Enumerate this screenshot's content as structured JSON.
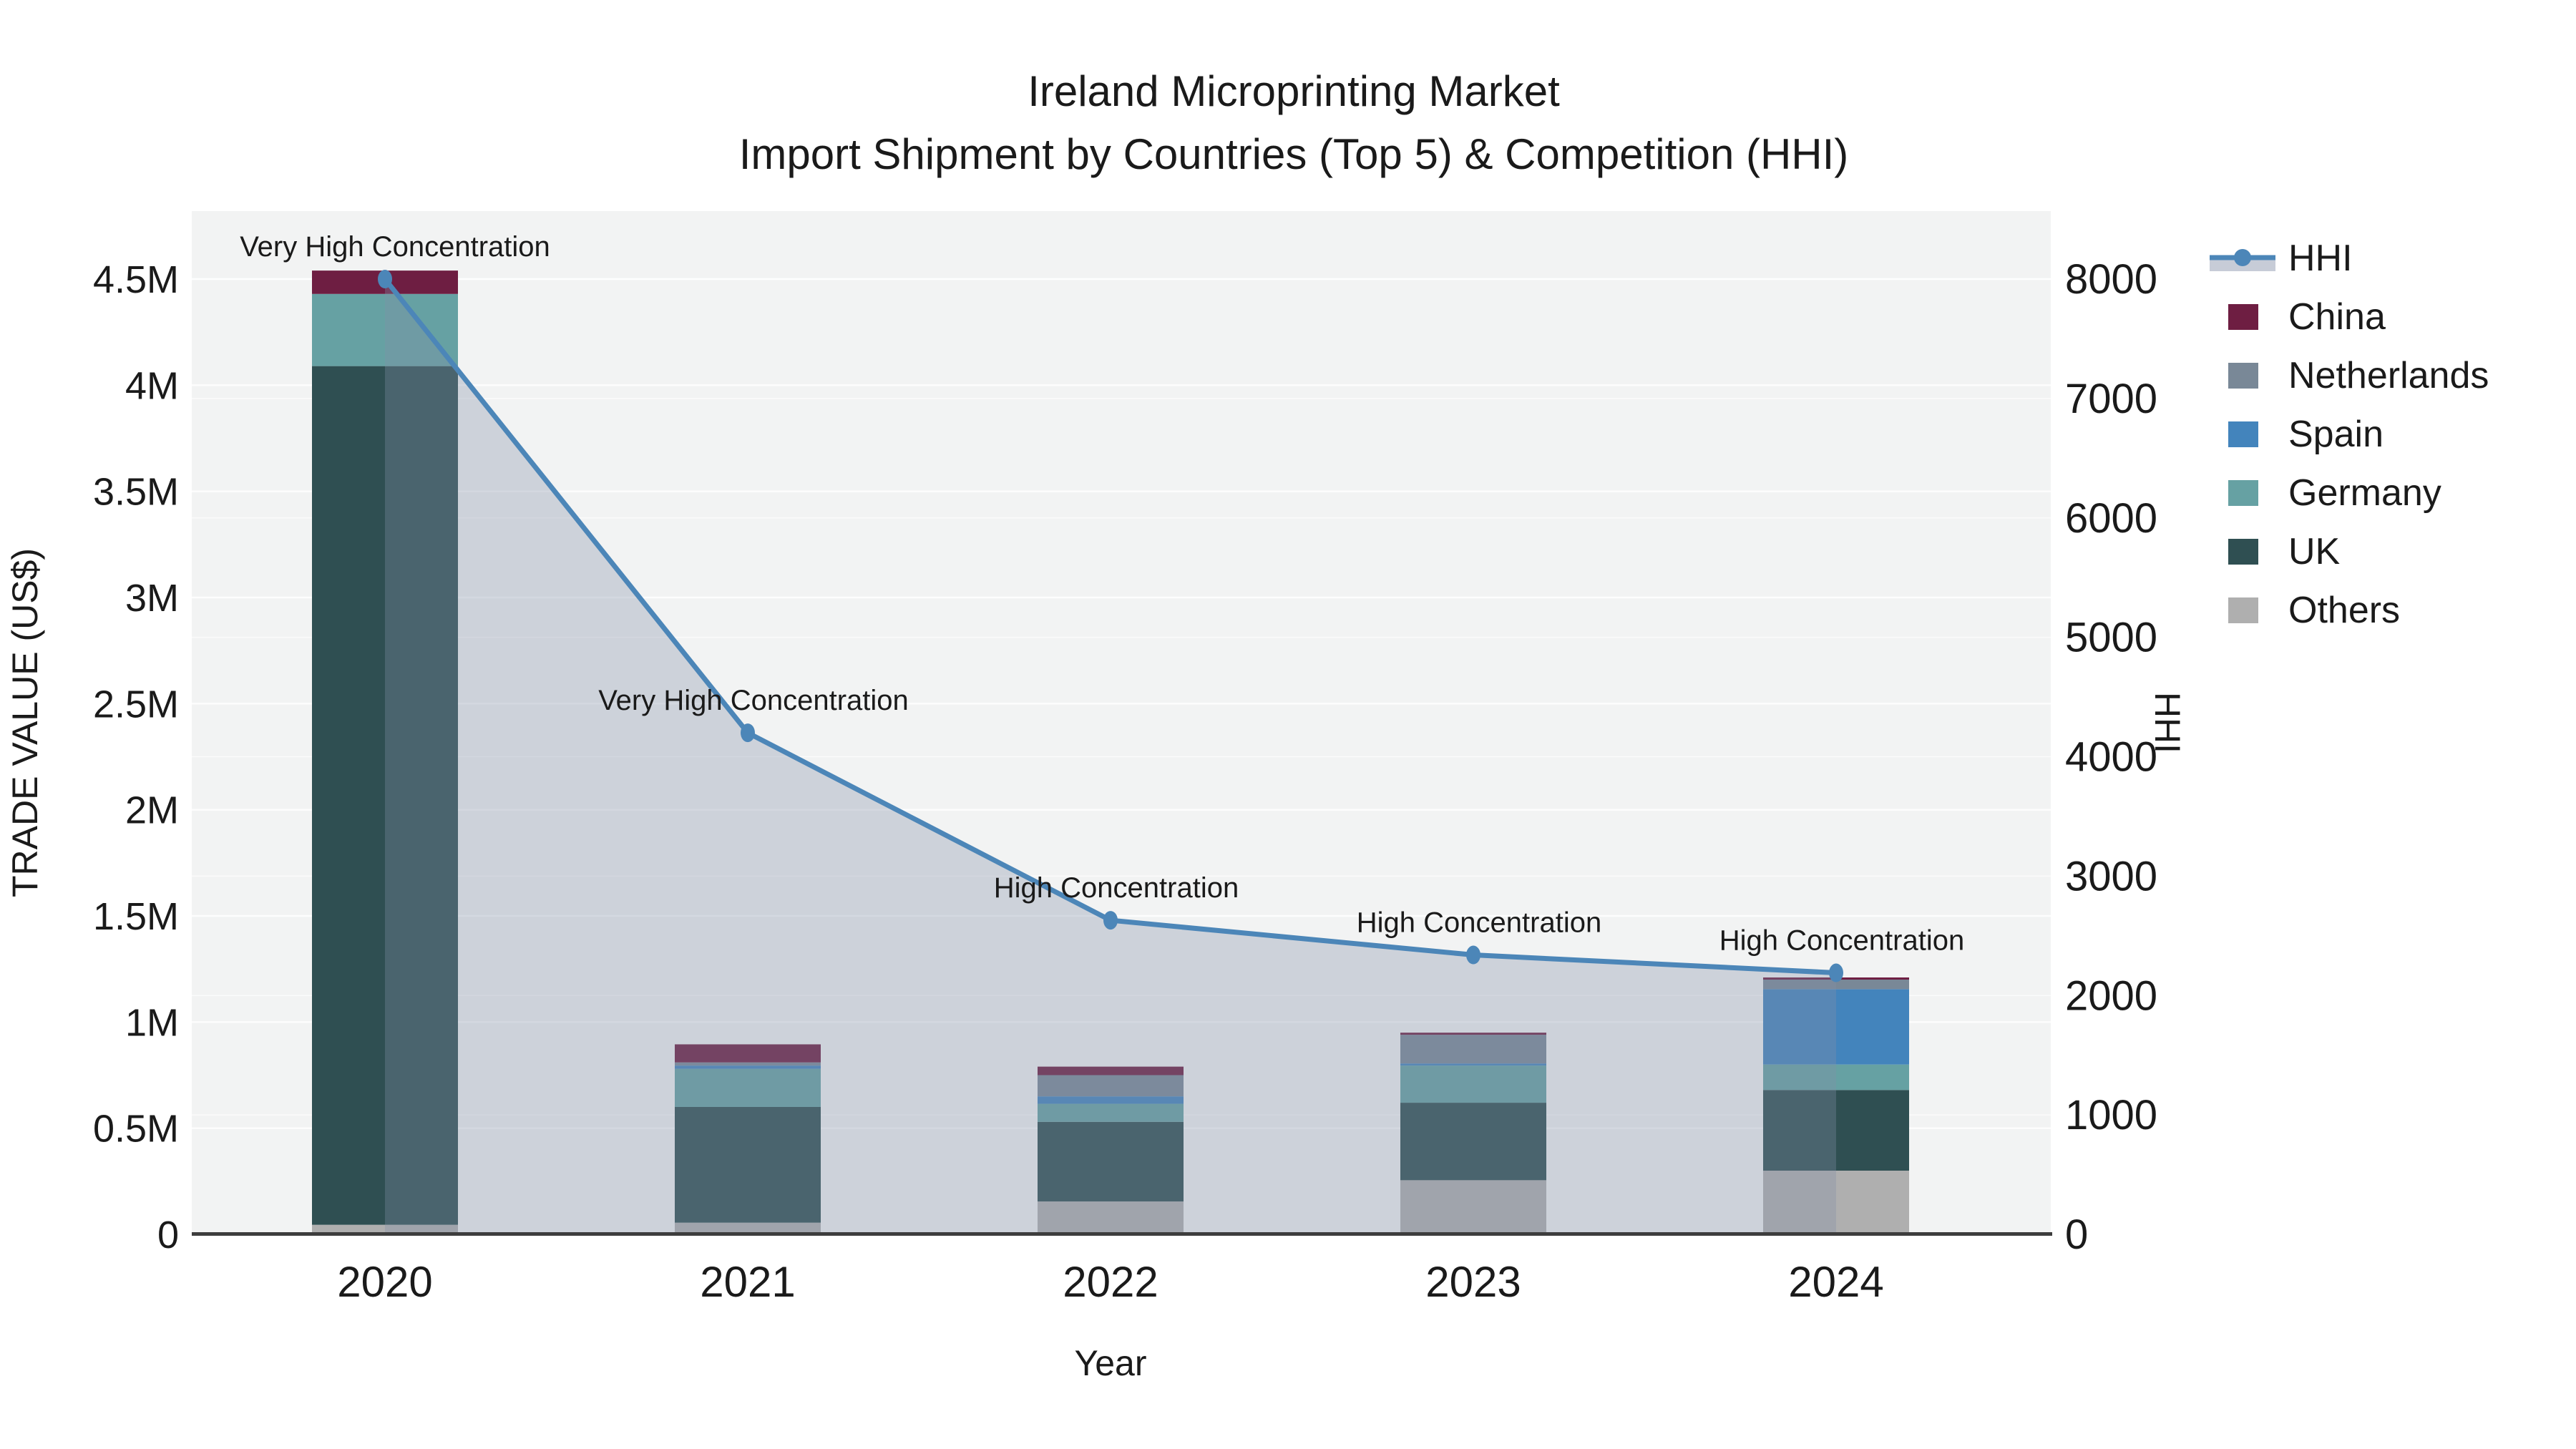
{
  "title": {
    "line1": "Ireland Microprinting Market",
    "line2": "Import Shipment by Countries (Top 5) & Competition (HHI)"
  },
  "axes": {
    "left": {
      "title": "TRADE VALUE (US$)",
      "tick_labels": [
        "0",
        "0.5M",
        "1M",
        "1.5M",
        "2M",
        "2.5M",
        "3M",
        "3.5M",
        "4M",
        "4.5M"
      ],
      "tick_values": [
        0,
        500000,
        1000000,
        1500000,
        2000000,
        2500000,
        3000000,
        3500000,
        4000000,
        4500000
      ]
    },
    "right": {
      "title": "HHI",
      "tick_labels": [
        "0",
        "1000",
        "2000",
        "3000",
        "4000",
        "5000",
        "6000",
        "7000",
        "8000"
      ],
      "tick_values": [
        0,
        1000,
        2000,
        3000,
        4000,
        5000,
        6000,
        7000,
        8000
      ]
    },
    "x": {
      "title": "Year",
      "tick_labels": [
        "2020",
        "2021",
        "2022",
        "2023",
        "2024"
      ]
    }
  },
  "legend": {
    "items": [
      {
        "label": "HHI",
        "type": "line",
        "color": "#4C86B8"
      },
      {
        "label": "China",
        "type": "swatch",
        "color": "#6E1E42"
      },
      {
        "label": "Netherlands",
        "type": "swatch",
        "color": "#798897"
      },
      {
        "label": "Spain",
        "type": "swatch",
        "color": "#4384BC"
      },
      {
        "label": "Germany",
        "type": "swatch",
        "color": "#66A1A3"
      },
      {
        "label": "UK",
        "type": "swatch",
        "color": "#2F4F52"
      },
      {
        "label": "Others",
        "type": "swatch",
        "color": "#AFAFAF"
      }
    ]
  },
  "chart_data": {
    "type": "bar",
    "subtype": "stacked-bars-with-line-area-dual-axis",
    "categories": [
      "2020",
      "2021",
      "2022",
      "2023",
      "2024"
    ],
    "series": [
      {
        "name": "Others",
        "color": "#AFAFAF",
        "values": [
          45000,
          55000,
          155000,
          255000,
          300000
        ]
      },
      {
        "name": "UK",
        "color": "#2F4F52",
        "values": [
          4045000,
          545000,
          375000,
          365000,
          380000
        ]
      },
      {
        "name": "Germany",
        "color": "#66A1A3",
        "values": [
          340000,
          180000,
          85000,
          175000,
          120000
        ]
      },
      {
        "name": "Spain",
        "color": "#4384BC",
        "values": [
          0,
          15000,
          35000,
          10000,
          355000
        ]
      },
      {
        "name": "Netherlands",
        "color": "#798897",
        "values": [
          0,
          15000,
          100000,
          135000,
          45000
        ]
      },
      {
        "name": "China",
        "color": "#6E1E42",
        "values": [
          110000,
          85000,
          40000,
          10000,
          10000
        ]
      }
    ],
    "line_series": {
      "name": "HHI",
      "axis": "right",
      "color": "#4C86B8",
      "fill_color": "rgba(130,143,166,0.33)",
      "values": [
        8000,
        4200,
        2630,
        2340,
        2190
      ]
    },
    "annotations": [
      {
        "category": "2020",
        "text": "Very High Concentration"
      },
      {
        "category": "2021",
        "text": "Very High Concentration"
      },
      {
        "category": "2022",
        "text": "High Concentration"
      },
      {
        "category": "2023",
        "text": "High Concentration"
      },
      {
        "category": "2024",
        "text": "High Concentration"
      }
    ],
    "title": "Ireland Microprinting Market — Import Shipment by Countries (Top 5) & Competition (HHI)",
    "xlabel": "Year",
    "ylabel_left": "TRADE VALUE (US$)",
    "ylabel_right": "HHI",
    "ylim_left": [
      0,
      4820000
    ],
    "ylim_right": [
      0,
      8570
    ],
    "grid": true,
    "legend_position": "right",
    "plot_bg": "#F2F3F3",
    "grid_color": "#FFFFFF"
  }
}
